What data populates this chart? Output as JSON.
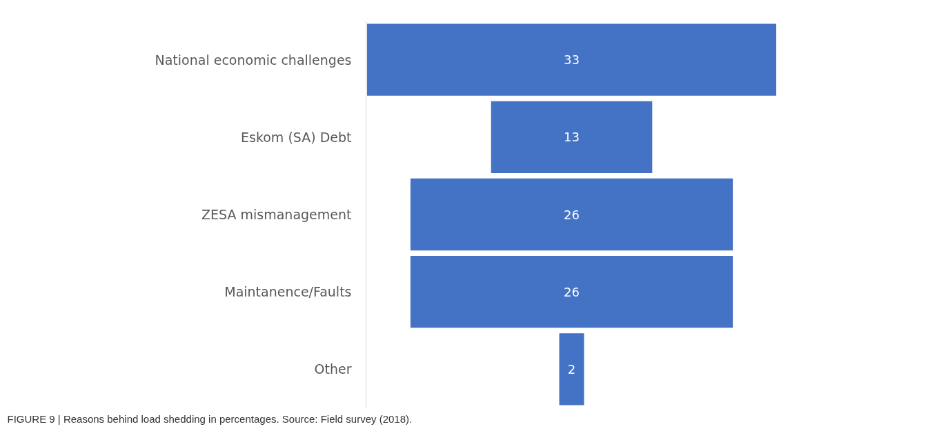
{
  "chart_data": {
    "type": "other",
    "categories": [
      "National economic challenges",
      "Eskom (SA) Debt",
      "ZESA mismanagement",
      "Maintanence/Faults",
      "Other"
    ],
    "values": [
      33,
      13,
      26,
      26,
      2
    ],
    "color": "#4472c4",
    "data_labels": true,
    "annotations": [
      "FIGURE 9 | Reasons behind load shedding in percentages. Source: Field survey (2018)."
    ]
  }
}
